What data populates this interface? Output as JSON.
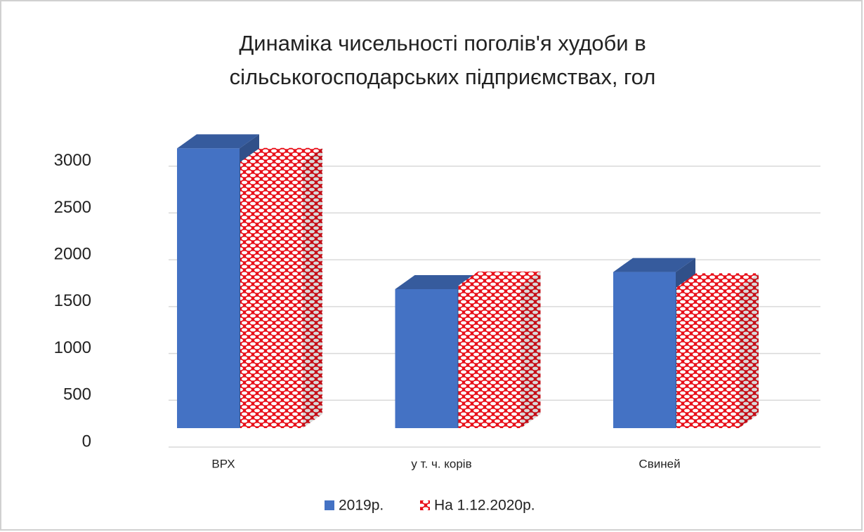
{
  "chart_data": {
    "type": "bar3d",
    "title": "Динаміка чисельності поголів'я худоби в сільськогосподарських підприємствах, гол",
    "categories": [
      "ВРХ",
      "у т. ч. корів",
      "Свиней"
    ],
    "series": [
      {
        "name": "2019р.",
        "color": "#4472c4",
        "values": [
          3100,
          1540,
          1730
        ]
      },
      {
        "name": "На 1.12.2020р.",
        "color": "#e8101a",
        "values": [
          2950,
          1580,
          1560
        ]
      }
    ],
    "ylim": [
      0,
      3500
    ],
    "yticks": [
      0,
      500,
      1000,
      1500,
      2000,
      2500,
      3000
    ],
    "grid": true
  }
}
